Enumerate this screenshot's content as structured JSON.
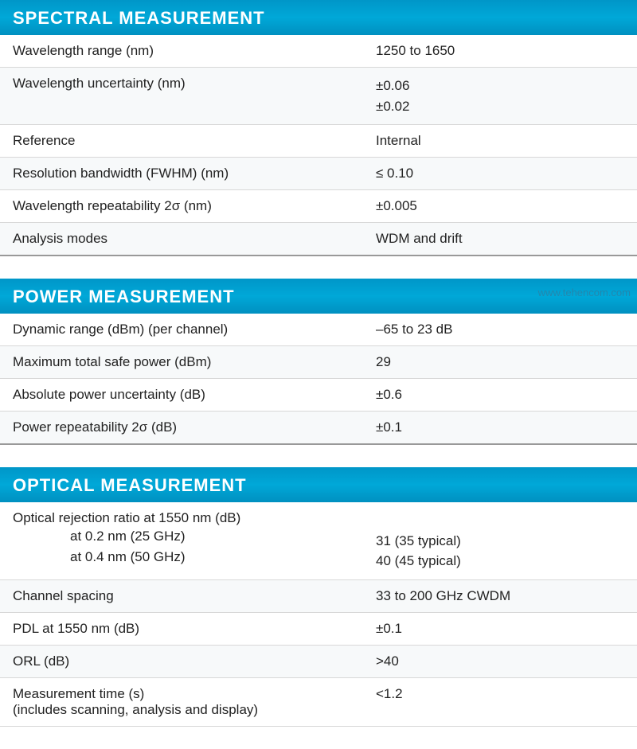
{
  "sections": [
    {
      "title": "SPECTRAL MEASUREMENT",
      "rows": [
        {
          "label": "Wavelength range (nm)",
          "value": "1250 to 1650",
          "alt": false
        },
        {
          "label": "Wavelength uncertainty (nm)",
          "value": "±0.06\n±0.02",
          "alt": true,
          "multiline": true
        },
        {
          "label": "Reference",
          "value": "Internal",
          "alt": false
        },
        {
          "label": "Resolution bandwidth (FWHM)  (nm)",
          "value": "≤ 0.10",
          "alt": true
        },
        {
          "label": "Wavelength repeatability 2σ (nm)",
          "value": "±0.005",
          "alt": false
        },
        {
          "label": "Analysis modes",
          "value": "WDM and drift",
          "alt": true,
          "heavy": true
        }
      ]
    },
    {
      "title": "POWER MEASUREMENT",
      "watermark": "www.tehencom.com",
      "rows": [
        {
          "label": "Dynamic range (dBm) (per channel)",
          "value": "–65 to 23 dB",
          "alt": false
        },
        {
          "label": "Maximum total safe power (dBm)",
          "value": "29",
          "alt": true
        },
        {
          "label": "Absolute power uncertainty (dB)",
          "value": "±0.6",
          "alt": false
        },
        {
          "label": "Power repeatability 2σ (dB)",
          "value": "±0.1",
          "alt": true,
          "heavy": true
        }
      ]
    },
    {
      "title": "OPTICAL MEASUREMENT",
      "rows": [
        {
          "label": "Optical rejection ratio at 1550 nm (dB)",
          "sublabels": [
            "at 0.2 nm (25 GHz)",
            "at 0.4 nm (50 GHz)"
          ],
          "value": "\n31 (35 typical)\n40 (45 typical)",
          "alt": false,
          "multiline": true
        },
        {
          "label": "Channel spacing",
          "value": "33 to 200 GHz CWDM",
          "alt": true
        },
        {
          "label": "PDL at 1550 nm (dB)",
          "value": "±0.1",
          "alt": false
        },
        {
          "label": "ORL (dB)",
          "value": ">40",
          "alt": true
        },
        {
          "label": "Measurement time (s)\n(includes scanning, analysis and display)",
          "value": "<1.2",
          "alt": false,
          "multiline_label": true
        }
      ]
    }
  ]
}
